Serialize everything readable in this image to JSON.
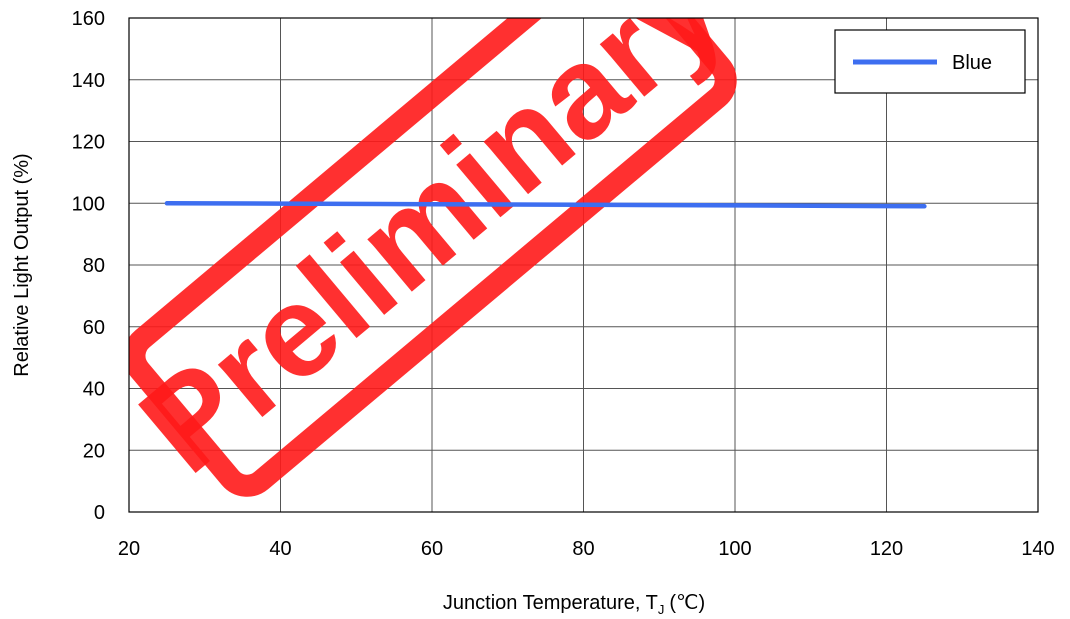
{
  "chart_data": {
    "type": "line",
    "title": "",
    "xlabel": "Junction Temperature, T",
    "xlabel_subscript": "J",
    "xlabel_unit": "(℃)",
    "ylabel": "Relative Light Output (%)",
    "xlim": [
      20,
      140
    ],
    "ylim": [
      0,
      160
    ],
    "x_ticks": [
      20,
      40,
      60,
      80,
      100,
      120,
      140
    ],
    "y_ticks": [
      0,
      20,
      40,
      60,
      80,
      100,
      120,
      140,
      160
    ],
    "grid": true,
    "legend_position": "top-right",
    "series": [
      {
        "name": "Blue",
        "color": "#3d6ef0",
        "x": [
          25,
          40,
          60,
          80,
          100,
          125
        ],
        "y": [
          100,
          99.9,
          99.7,
          99.5,
          99.3,
          99.0
        ]
      }
    ]
  },
  "watermark": {
    "text": "Preliminary",
    "color": "#ff1a1a"
  }
}
